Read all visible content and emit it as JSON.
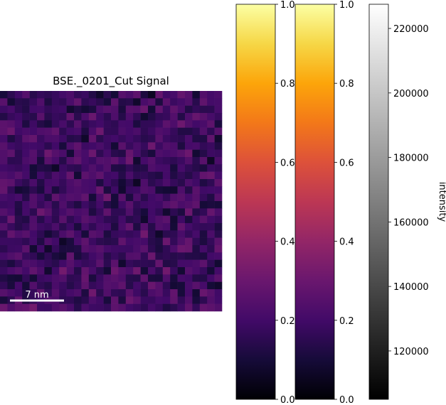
{
  "chart_data": [
    {
      "type": "heatmap",
      "title": "BSE._0201_Cut Signal",
      "grid_size": [
        30,
        30
      ],
      "colormap": "inferno",
      "value_range": [
        0.05,
        0.55
      ],
      "scalebar": {
        "label": "7 nm"
      }
    },
    {
      "type": "colorbar",
      "colormap": "inferno",
      "ylim": [
        0,
        1
      ],
      "ticks": [
        0.0,
        0.2,
        0.4,
        0.6,
        0.8,
        1.0
      ],
      "tick_labels": [
        "0.0",
        "0.2",
        "0.4",
        "0.6",
        "0.8",
        "1.0"
      ]
    },
    {
      "type": "colorbar",
      "colormap": "inferno",
      "ylim": [
        0,
        1
      ],
      "ticks": [
        0.0,
        0.2,
        0.4,
        0.6,
        0.8,
        1.0
      ],
      "tick_labels": [
        "0.0",
        "0.2",
        "0.4",
        "0.6",
        "0.8",
        "1.0"
      ]
    },
    {
      "type": "colorbar",
      "colormap": "gray",
      "ylabel": "intensity",
      "ylim": [
        105000,
        227500
      ],
      "ticks": [
        120000,
        140000,
        160000,
        180000,
        200000,
        220000
      ],
      "tick_labels": [
        "120000",
        "140000",
        "160000",
        "180000",
        "200000",
        "220000"
      ]
    }
  ]
}
